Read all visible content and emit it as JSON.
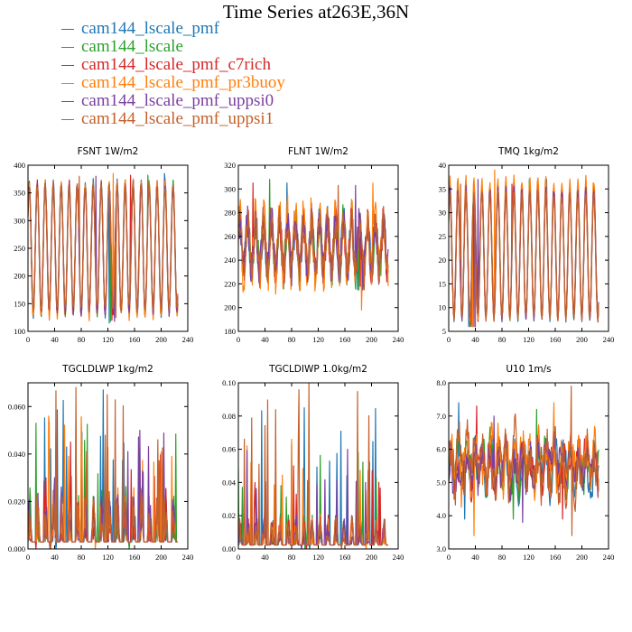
{
  "page": {
    "title": "Time Series at263E,36N"
  },
  "legend": {
    "items": [
      {
        "label": "cam144_lscale_pmf",
        "color": "#1f77b4"
      },
      {
        "label": "cam144_lscale",
        "color": "#2ca02c"
      },
      {
        "label": "cam144_lscale_pmf_c7rich",
        "color": "#d62728"
      },
      {
        "label": "cam144_lscale_pmf_pr3buoy",
        "color": "#ff7f0e"
      },
      {
        "label": "cam144_lscale_pmf_uppsi0",
        "color": "#7b3fa0"
      },
      {
        "label": "cam144_lscale_pmf_uppsi1",
        "color": "#c4602b"
      }
    ]
  },
  "chart_data": [
    {
      "type": "line",
      "title": "FSNT   1W/m2",
      "xlim": [
        0,
        240
      ],
      "ylim": [
        100,
        400
      ],
      "xticks": [
        0,
        40,
        80,
        120,
        160,
        200,
        240
      ],
      "yticks": [
        100,
        150,
        200,
        250,
        300,
        350,
        400
      ],
      "xtick_labels": [
        "0",
        "40",
        "80",
        "120",
        "160",
        "200",
        "240"
      ],
      "ytick_labels": [
        "100",
        "150",
        "200",
        "250",
        "300",
        "350",
        "400"
      ],
      "n": 226,
      "pattern": "diurnal",
      "series": [
        {
          "name": "cam144_lscale_pmf",
          "summary": {
            "min": 115,
            "max": 385,
            "mean": 250
          }
        },
        {
          "name": "cam144_lscale",
          "summary": {
            "min": 118,
            "max": 382,
            "mean": 250
          }
        },
        {
          "name": "cam144_lscale_pmf_c7rich",
          "summary": {
            "min": 120,
            "max": 382,
            "mean": 250
          }
        },
        {
          "name": "cam144_lscale_pmf_pr3buoy",
          "summary": {
            "min": 110,
            "max": 385,
            "mean": 250
          }
        },
        {
          "name": "cam144_lscale_pmf_uppsi0",
          "summary": {
            "min": 118,
            "max": 380,
            "mean": 250
          }
        },
        {
          "name": "cam144_lscale_pmf_uppsi1",
          "summary": {
            "min": 125,
            "max": 380,
            "mean": 250
          }
        }
      ]
    },
    {
      "type": "line",
      "title": "FLNT   1W/m2",
      "xlim": [
        0,
        240
      ],
      "ylim": [
        180,
        320
      ],
      "xticks": [
        0,
        40,
        80,
        120,
        160,
        200,
        240
      ],
      "yticks": [
        180,
        200,
        220,
        240,
        260,
        280,
        300,
        320
      ],
      "xtick_labels": [
        "0",
        "40",
        "80",
        "120",
        "160",
        "200",
        "240"
      ],
      "ytick_labels": [
        "180",
        "200",
        "220",
        "240",
        "260",
        "280",
        "300",
        "320"
      ],
      "n": 226,
      "pattern": "diurnal-noisy",
      "series": [
        {
          "name": "cam144_lscale_pmf",
          "summary": {
            "min": 215,
            "max": 305,
            "mean": 250
          }
        },
        {
          "name": "cam144_lscale",
          "summary": {
            "min": 215,
            "max": 308,
            "mean": 250
          }
        },
        {
          "name": "cam144_lscale_pmf_c7rich",
          "summary": {
            "min": 218,
            "max": 305,
            "mean": 250
          }
        },
        {
          "name": "cam144_lscale_pmf_pr3buoy",
          "summary": {
            "min": 198,
            "max": 305,
            "mean": 250
          }
        },
        {
          "name": "cam144_lscale_pmf_uppsi0",
          "summary": {
            "min": 215,
            "max": 303,
            "mean": 250
          }
        },
        {
          "name": "cam144_lscale_pmf_uppsi1",
          "summary": {
            "min": 215,
            "max": 303,
            "mean": 250
          }
        }
      ]
    },
    {
      "type": "line",
      "title": "TMQ   1kg/m2",
      "xlim": [
        0,
        240
      ],
      "ylim": [
        5,
        40
      ],
      "xticks": [
        0,
        40,
        80,
        120,
        160,
        200,
        240
      ],
      "yticks": [
        5,
        10,
        15,
        20,
        25,
        30,
        35,
        40
      ],
      "xtick_labels": [
        "0",
        "40",
        "80",
        "120",
        "160",
        "200",
        "240"
      ],
      "ytick_labels": [
        "5",
        "10",
        "15",
        "20",
        "25",
        "30",
        "35",
        "40"
      ],
      "n": 226,
      "pattern": "diurnal",
      "series": [
        {
          "name": "cam144_lscale_pmf",
          "summary": {
            "min": 6,
            "max": 37,
            "mean": 21
          }
        },
        {
          "name": "cam144_lscale",
          "summary": {
            "min": 6,
            "max": 37,
            "mean": 21
          }
        },
        {
          "name": "cam144_lscale_pmf_c7rich",
          "summary": {
            "min": 6,
            "max": 36,
            "mean": 21
          }
        },
        {
          "name": "cam144_lscale_pmf_pr3buoy",
          "summary": {
            "min": 6,
            "max": 39,
            "mean": 21
          }
        },
        {
          "name": "cam144_lscale_pmf_uppsi0",
          "summary": {
            "min": 6,
            "max": 37,
            "mean": 21
          }
        },
        {
          "name": "cam144_lscale_pmf_uppsi1",
          "summary": {
            "min": 6,
            "max": 36,
            "mean": 21
          }
        }
      ]
    },
    {
      "type": "line",
      "title": "TGCLDLWP   1kg/m2",
      "xlim": [
        0,
        240
      ],
      "ylim": [
        0,
        0.07
      ],
      "xticks": [
        0,
        40,
        80,
        120,
        160,
        200,
        240
      ],
      "yticks": [
        0,
        0.02,
        0.04,
        0.06
      ],
      "xtick_labels": [
        "0",
        "40",
        "80",
        "120",
        "160",
        "200",
        "240"
      ],
      "ytick_labels": [
        "0.000",
        "0.020",
        "0.040",
        "0.060"
      ],
      "n": 226,
      "pattern": "spiky",
      "series": [
        {
          "name": "cam144_lscale_pmf",
          "summary": {
            "min": 0.0,
            "max": 0.067,
            "mean": 0.015
          }
        },
        {
          "name": "cam144_lscale",
          "summary": {
            "min": 0.0,
            "max": 0.053,
            "mean": 0.015
          }
        },
        {
          "name": "cam144_lscale_pmf_c7rich",
          "summary": {
            "min": 0.0,
            "max": 0.045,
            "mean": 0.015
          }
        },
        {
          "name": "cam144_lscale_pmf_pr3buoy",
          "summary": {
            "min": 0.0,
            "max": 0.056,
            "mean": 0.015
          }
        },
        {
          "name": "cam144_lscale_pmf_uppsi0",
          "summary": {
            "min": 0.0,
            "max": 0.05,
            "mean": 0.015
          }
        },
        {
          "name": "cam144_lscale_pmf_uppsi1",
          "summary": {
            "min": 0.0,
            "max": 0.068,
            "mean": 0.015
          }
        }
      ]
    },
    {
      "type": "line",
      "title": "TGCLDIWP   1.0kg/m2",
      "xlim": [
        0,
        240
      ],
      "ylim": [
        0,
        0.1
      ],
      "xticks": [
        0,
        40,
        80,
        120,
        160,
        200,
        240
      ],
      "yticks": [
        0,
        0.02,
        0.04,
        0.06,
        0.08,
        0.1
      ],
      "xtick_labels": [
        "0",
        "40",
        "80",
        "120",
        "160",
        "200",
        "240"
      ],
      "ytick_labels": [
        "0.00",
        "0.02",
        "0.04",
        "0.06",
        "0.08",
        "0.10"
      ],
      "n": 226,
      "pattern": "spiky",
      "series": [
        {
          "name": "cam144_lscale_pmf",
          "summary": {
            "min": 0.0,
            "max": 0.085,
            "mean": 0.012
          }
        },
        {
          "name": "cam144_lscale",
          "summary": {
            "min": 0.0,
            "max": 0.058,
            "mean": 0.012
          }
        },
        {
          "name": "cam144_lscale_pmf_c7rich",
          "summary": {
            "min": 0.0,
            "max": 0.05,
            "mean": 0.012
          }
        },
        {
          "name": "cam144_lscale_pmf_pr3buoy",
          "summary": {
            "min": 0.0,
            "max": 0.066,
            "mean": 0.012
          }
        },
        {
          "name": "cam144_lscale_pmf_uppsi0",
          "summary": {
            "min": 0.0,
            "max": 0.06,
            "mean": 0.012
          }
        },
        {
          "name": "cam144_lscale_pmf_uppsi1",
          "summary": {
            "min": 0.0,
            "max": 0.1,
            "mean": 0.012
          }
        }
      ]
    },
    {
      "type": "line",
      "title": "U10   1m/s",
      "xlim": [
        0,
        240
      ],
      "ylim": [
        3,
        8
      ],
      "xticks": [
        0,
        40,
        80,
        120,
        160,
        200,
        240
      ],
      "yticks": [
        3,
        4,
        5,
        6,
        7,
        8
      ],
      "xtick_labels": [
        "0",
        "40",
        "80",
        "120",
        "160",
        "200",
        "240"
      ],
      "ytick_labels": [
        "3.0",
        "4.0",
        "5.0",
        "6.0",
        "7.0",
        "8.0"
      ],
      "n": 226,
      "pattern": "noisy",
      "series": [
        {
          "name": "cam144_lscale_pmf",
          "summary": {
            "min": 3.9,
            "max": 7.4,
            "mean": 5.5
          }
        },
        {
          "name": "cam144_lscale",
          "summary": {
            "min": 3.9,
            "max": 7.2,
            "mean": 5.5
          }
        },
        {
          "name": "cam144_lscale_pmf_c7rich",
          "summary": {
            "min": 3.9,
            "max": 7.3,
            "mean": 5.5
          }
        },
        {
          "name": "cam144_lscale_pmf_pr3buoy",
          "summary": {
            "min": 3.4,
            "max": 7.4,
            "mean": 5.5
          }
        },
        {
          "name": "cam144_lscale_pmf_uppsi0",
          "summary": {
            "min": 3.8,
            "max": 7.0,
            "mean": 5.5
          }
        },
        {
          "name": "cam144_lscale_pmf_uppsi1",
          "summary": {
            "min": 3.4,
            "max": 7.9,
            "mean": 5.5
          }
        }
      ]
    }
  ]
}
